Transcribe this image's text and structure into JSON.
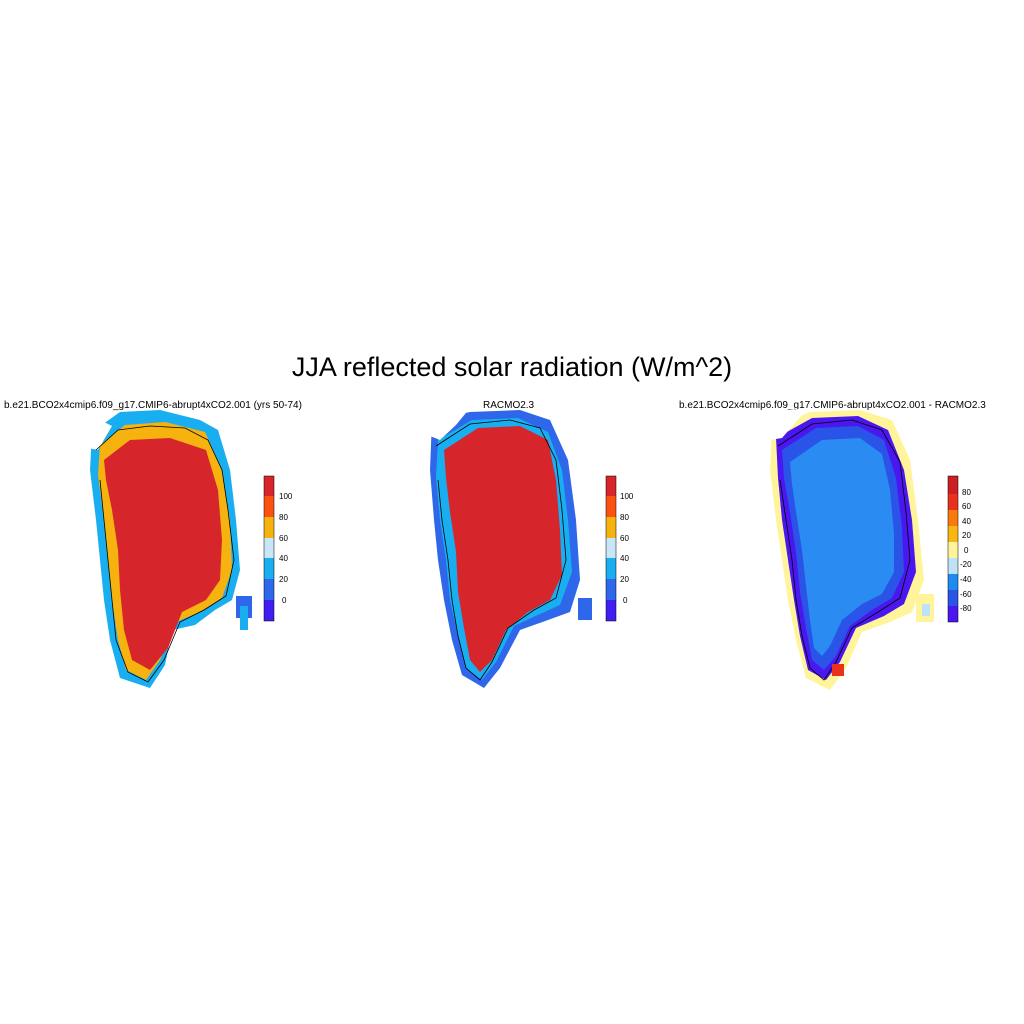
{
  "figure": {
    "title": "JJA reflected solar radiation (W/m^2)"
  },
  "colors": {
    "abs_scale": [
      "#3f1ff2",
      "#2e67ea",
      "#19aef0",
      "#c8e6f8",
      "#f6b20f",
      "#fb5212",
      "#d7262b"
    ],
    "diff_scale": [
      "#4b17f0",
      "#2a53e8",
      "#1f8af0",
      "#bfe3f6",
      "#fff49a",
      "#f8b813",
      "#f87a0f",
      "#e8321c",
      "#cc1f25"
    ],
    "coast": "#000000"
  },
  "panels": [
    {
      "title": "b.e21.BCO2x4cmip6.f09_g17.CMIP6-abrupt4xCO2.001 (yrs 50-74)",
      "icon": "greenland-map-icon",
      "interior_color": "#d7262b",
      "colorbar": {
        "ticks": [
          "100",
          "80",
          "60",
          "40",
          "20",
          "0"
        ]
      }
    },
    {
      "title": "RACMO2.3",
      "icon": "greenland-map-icon",
      "interior_color": "#d7262b",
      "colorbar": {
        "ticks": [
          "100",
          "80",
          "60",
          "40",
          "20",
          "0"
        ]
      }
    },
    {
      "title": "b.e21.BCO2x4cmip6.f09_g17.CMIP6-abrupt4xCO2.001 - RACMO2.3",
      "icon": "greenland-map-icon",
      "interior_color": "#2a8cf3",
      "colorbar": {
        "ticks": [
          "80",
          "60",
          "40",
          "20",
          "0",
          "-20",
          "-40",
          "-60",
          "-80"
        ]
      }
    }
  ]
}
